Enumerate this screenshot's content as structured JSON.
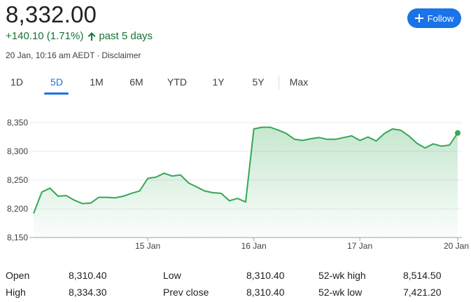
{
  "quote": {
    "price": "8,332.00",
    "change": "+140.10 (1.71%)",
    "period": "past 5 days",
    "timestamp": "20 Jan, 10:16 am AEDT",
    "separator": "·",
    "disclaimer": "Disclaimer",
    "change_color": "#137333"
  },
  "follow_button": {
    "label": "Follow",
    "color": "#1a73e8"
  },
  "tabs": [
    {
      "label": "1D",
      "active": false
    },
    {
      "label": "5D",
      "active": true
    },
    {
      "label": "1M",
      "active": false
    },
    {
      "label": "6M",
      "active": false
    },
    {
      "label": "YTD",
      "active": false
    },
    {
      "label": "1Y",
      "active": false
    },
    {
      "label": "5Y",
      "active": false
    },
    {
      "label": "Max",
      "active": false
    }
  ],
  "chart_data": {
    "type": "area",
    "y_ticks": [
      "8,350",
      "8,300",
      "8,250",
      "8,200",
      "8,150"
    ],
    "y_tick_values": [
      8350,
      8300,
      8250,
      8200,
      8150
    ],
    "x_ticks": [
      "15 Jan",
      "16 Jan",
      "17 Jan",
      "20 Jan"
    ],
    "ylim": [
      8150,
      8365
    ],
    "grid": true,
    "line_color": "#34a853",
    "series": [
      {
        "values": [
          8192,
          8229,
          8236,
          8222,
          8223,
          8215,
          8209,
          8210,
          8220,
          8220,
          8219,
          8222,
          8227,
          8231,
          8253,
          8255,
          8262,
          8257,
          8259,
          8245,
          8238,
          8231,
          8228,
          8227,
          8214,
          8218,
          8212,
          8339,
          8342,
          8342,
          8337,
          8331,
          8321,
          8319,
          8322,
          8324,
          8321,
          8321,
          8324,
          8327,
          8319,
          8325,
          8318,
          8331,
          8339,
          8337,
          8327,
          8314,
          8306,
          8313,
          8309,
          8311,
          8332
        ]
      }
    ]
  },
  "stats": [
    {
      "label": "Open",
      "value": "8,310.40"
    },
    {
      "label": "High",
      "value": "8,334.30"
    },
    {
      "label": "Low",
      "value": "8,310.40"
    },
    {
      "label": "Prev close",
      "value": "8,310.40"
    },
    {
      "label": "52-wk high",
      "value": "8,514.50"
    },
    {
      "label": "52-wk low",
      "value": "7,421.20"
    }
  ]
}
